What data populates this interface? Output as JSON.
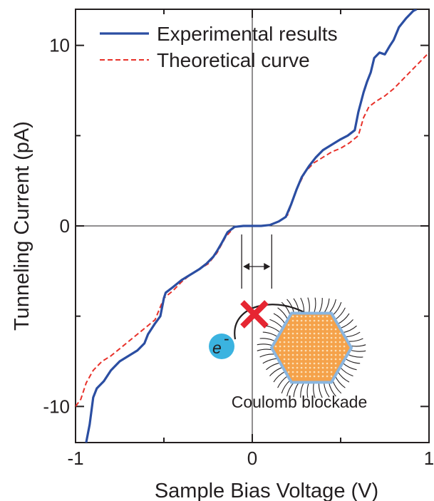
{
  "chart_data": {
    "type": "line",
    "title": "",
    "xlabel": "Sample Bias Voltage (V)",
    "ylabel": "Tunneling Current (pA)",
    "xlim": [
      -1,
      1
    ],
    "ylim": [
      -12,
      12
    ],
    "x_ticks": [
      -1,
      0,
      1
    ],
    "x_tick_labels": [
      "-1",
      "0",
      "1"
    ],
    "y_ticks": [
      -10,
      0,
      10
    ],
    "y_tick_labels": [
      "-10",
      "0",
      "10"
    ],
    "grid": false,
    "legend_position": "top-left",
    "series": [
      {
        "name": "Experimental results",
        "color": "#2b4ea2",
        "style": "solid",
        "points": [
          [
            -0.94,
            -12.0
          ],
          [
            -0.92,
            -11.0
          ],
          [
            -0.9,
            -9.5
          ],
          [
            -0.88,
            -9.0
          ],
          [
            -0.84,
            -8.6
          ],
          [
            -0.8,
            -8.0
          ],
          [
            -0.75,
            -7.5
          ],
          [
            -0.7,
            -7.2
          ],
          [
            -0.65,
            -6.9
          ],
          [
            -0.61,
            -6.5
          ],
          [
            -0.59,
            -6.0
          ],
          [
            -0.55,
            -5.4
          ],
          [
            -0.52,
            -5.0
          ],
          [
            -0.5,
            -4.0
          ],
          [
            -0.49,
            -3.7
          ],
          [
            -0.45,
            -3.4
          ],
          [
            -0.4,
            -3.0
          ],
          [
            -0.35,
            -2.7
          ],
          [
            -0.3,
            -2.4
          ],
          [
            -0.26,
            -2.1
          ],
          [
            -0.22,
            -1.7
          ],
          [
            -0.2,
            -1.4
          ],
          [
            -0.17,
            -0.9
          ],
          [
            -0.14,
            -0.35
          ],
          [
            -0.1,
            -0.05
          ],
          [
            -0.05,
            0.0
          ],
          [
            0.0,
            0.0
          ],
          [
            0.05,
            0.0
          ],
          [
            0.1,
            0.05
          ],
          [
            0.15,
            0.25
          ],
          [
            0.19,
            0.5
          ],
          [
            0.22,
            1.2
          ],
          [
            0.25,
            2.0
          ],
          [
            0.28,
            2.7
          ],
          [
            0.32,
            3.3
          ],
          [
            0.36,
            3.8
          ],
          [
            0.4,
            4.2
          ],
          [
            0.45,
            4.5
          ],
          [
            0.5,
            4.8
          ],
          [
            0.54,
            5.0
          ],
          [
            0.58,
            5.3
          ],
          [
            0.6,
            6.3
          ],
          [
            0.63,
            7.4
          ],
          [
            0.65,
            8.0
          ],
          [
            0.67,
            8.5
          ],
          [
            0.69,
            9.3
          ],
          [
            0.72,
            9.6
          ],
          [
            0.75,
            9.5
          ],
          [
            0.78,
            10.0
          ],
          [
            0.8,
            10.3
          ],
          [
            0.83,
            11.0
          ],
          [
            0.87,
            11.5
          ],
          [
            0.91,
            11.9
          ],
          [
            0.93,
            12.0
          ]
        ]
      },
      {
        "name": "Theoretical curve",
        "color": "#e8312a",
        "style": "dashed",
        "points": [
          [
            -1.0,
            -10.0
          ],
          [
            -0.97,
            -9.6
          ],
          [
            -0.94,
            -8.7
          ],
          [
            -0.9,
            -8.0
          ],
          [
            -0.85,
            -7.5
          ],
          [
            -0.8,
            -7.2
          ],
          [
            -0.75,
            -6.8
          ],
          [
            -0.7,
            -6.4
          ],
          [
            -0.65,
            -6.0
          ],
          [
            -0.6,
            -5.6
          ],
          [
            -0.55,
            -5.2
          ],
          [
            -0.5,
            -4.0
          ],
          [
            -0.45,
            -3.6
          ],
          [
            -0.4,
            -3.1
          ],
          [
            -0.35,
            -2.7
          ],
          [
            -0.3,
            -2.4
          ],
          [
            -0.25,
            -2.1
          ],
          [
            -0.2,
            -1.5
          ],
          [
            -0.15,
            -0.6
          ],
          [
            -0.1,
            -0.05
          ],
          [
            -0.05,
            0.0
          ],
          [
            0.0,
            0.0
          ],
          [
            0.05,
            0.0
          ],
          [
            0.1,
            0.05
          ],
          [
            0.15,
            0.25
          ],
          [
            0.2,
            0.6
          ],
          [
            0.25,
            2.0
          ],
          [
            0.3,
            3.0
          ],
          [
            0.35,
            3.5
          ],
          [
            0.4,
            3.8
          ],
          [
            0.45,
            4.1
          ],
          [
            0.5,
            4.3
          ],
          [
            0.55,
            4.6
          ],
          [
            0.6,
            5.0
          ],
          [
            0.63,
            6.0
          ],
          [
            0.66,
            6.6
          ],
          [
            0.7,
            6.9
          ],
          [
            0.75,
            7.2
          ],
          [
            0.8,
            7.6
          ],
          [
            0.85,
            8.1
          ],
          [
            0.9,
            8.6
          ],
          [
            0.95,
            9.1
          ],
          [
            1.0,
            9.6
          ]
        ]
      }
    ],
    "annotations": {
      "blockade_label": "Coulomb blockade",
      "electron_label": "e",
      "electron_superscript": "-",
      "gap_arrow_from": -0.06,
      "gap_arrow_to": 0.11
    },
    "colors": {
      "axis": "#231f20",
      "cross": "#e62632",
      "electron": "#3bb3e0",
      "nanoparticle": "#f5a24a",
      "nanoparticle_edge": "#8ab6e0",
      "ligand": "#231f20"
    }
  }
}
